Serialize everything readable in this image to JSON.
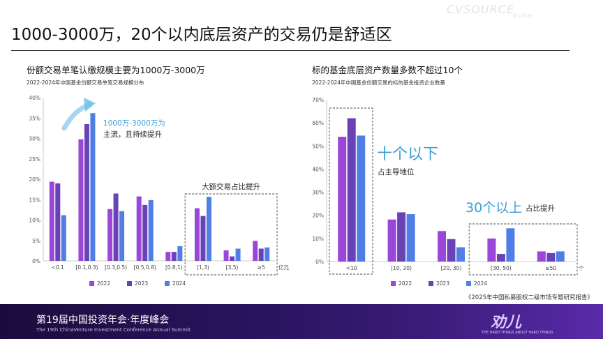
{
  "page": {
    "title": "1000-3000万，20个以内底层资产的交易仍是舒适区",
    "source_note": "《2025年中国私募股权二级市场专题研究报告》",
    "watermark": "CVSOURCE",
    "watermark_sub": "投中数据"
  },
  "footer": {
    "title": "第19届中国投资年会·年度峰会",
    "subtitle": "The 19th ChinaVenture Investment Conference Annual Summit",
    "logo_text": "劝儿",
    "logo_sub": "THE HARD THINGS ABOUT HARD THINGS"
  },
  "colors": {
    "2022": "#9a47d9",
    "2023": "#6a42b8",
    "2024": "#4f7fe6",
    "accent": "#3aa0d8"
  },
  "chart_data": [
    {
      "type": "bar",
      "subtitle": "份额交易单笔认缴规模主要为1000万-3000万",
      "title": "2022-2024年中国基金份额交易单笔交易规模分布",
      "categories": [
        "<0.1",
        "[0.1,0.3)",
        "[0.3,0.5)",
        "[0.5,0.8)",
        "[0.8,1)",
        "[1,3)",
        "[3,5)",
        "≥5"
      ],
      "x_unit": "亿元",
      "series": [
        {
          "name": "2022",
          "values": [
            19.4,
            29.8,
            12.7,
            15.8,
            2.2,
            12.9,
            2.6,
            4.9
          ]
        },
        {
          "name": "2023",
          "values": [
            19.0,
            33.5,
            16.5,
            13.7,
            2.2,
            11.0,
            1.1,
            3.0
          ]
        },
        {
          "name": "2024",
          "values": [
            11.2,
            36.2,
            12.2,
            14.9,
            3.6,
            15.7,
            3.0,
            3.3
          ]
        }
      ],
      "ylim": [
        0,
        40
      ],
      "yticks": [
        "0%",
        "5%",
        "10%",
        "15%",
        "20%",
        "25%",
        "30%",
        "35%",
        "40%"
      ],
      "annotation_main": "1000万-3000万为",
      "annotation_main2": "主流，且持续提升",
      "annotation_box": "大额交易占比提升"
    },
    {
      "type": "bar",
      "subtitle": "标的基金底层资产数量多数不超过10个",
      "title": "2022-2024年中国基金份额交易的标的基金投资企业数量",
      "categories": [
        "<10",
        "[10, 20)",
        "[20, 30)",
        "[30, 50)",
        "≥50"
      ],
      "x_unit": "个",
      "series": [
        {
          "name": "2022",
          "values": [
            54.0,
            18.2,
            13.2,
            10.0,
            4.4
          ]
        },
        {
          "name": "2023",
          "values": [
            62.0,
            21.3,
            9.7,
            3.3,
            3.7
          ]
        },
        {
          "name": "2024",
          "values": [
            54.5,
            20.5,
            6.2,
            14.4,
            4.4
          ]
        }
      ],
      "ylim": [
        0,
        70
      ],
      "yticks": [
        "0%",
        "10%",
        "20%",
        "30%",
        "40%",
        "50%",
        "60%",
        "70%"
      ],
      "annotation_main": "十个以下",
      "annotation_main_sub": "占主导地位",
      "annotation_box": "30个以上",
      "annotation_box_sub": "占比提升"
    }
  ]
}
